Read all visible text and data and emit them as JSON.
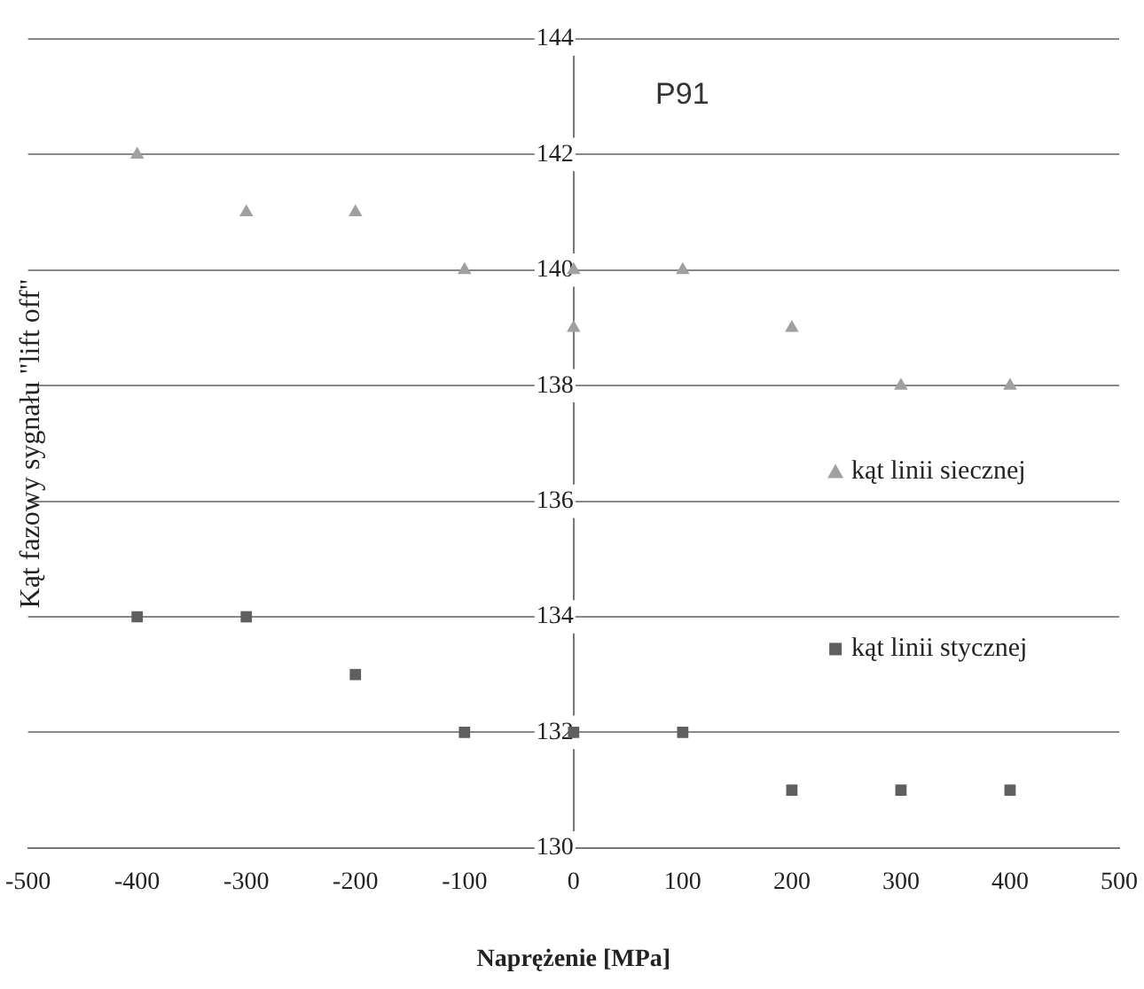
{
  "chart_data": {
    "type": "scatter",
    "title": "P91",
    "xlabel": "Naprężenie [MPa]",
    "ylabel": "Kąt fazowy sygnału \"lift off\"",
    "series": [
      {
        "name": "kąt linii siecznej",
        "color": "#a0a0a0",
        "marker": "triangle",
        "x": [
          -400,
          -300,
          -200,
          -100,
          0,
          0,
          100,
          200,
          300,
          400
        ],
        "values": [
          142,
          141,
          141,
          140,
          140,
          139,
          140,
          139,
          138,
          138
        ]
      },
      {
        "name": "kąt linii stycznej",
        "color": "#5f5f5f",
        "marker": "square",
        "x": [
          -400,
          -300,
          -200,
          -100,
          0,
          100,
          200,
          300,
          400
        ],
        "values": [
          134,
          134,
          133,
          132,
          132,
          132,
          131,
          131,
          131
        ]
      }
    ],
    "xlim": [
      -500,
      500
    ],
    "xticks": [
      -500,
      -400,
      -300,
      -200,
      -100,
      0,
      100,
      200,
      300,
      400,
      500
    ],
    "ylim": [
      130,
      144
    ],
    "yticks": [
      130,
      132,
      134,
      136,
      138,
      140,
      142,
      144
    ],
    "grid": "y",
    "legend": "right"
  }
}
